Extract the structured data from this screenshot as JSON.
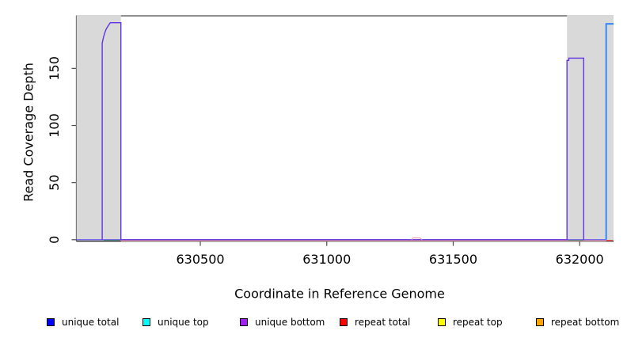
{
  "chart_data": {
    "type": "line",
    "title": "",
    "xlabel": "Coordinate in Reference Genome",
    "ylabel": "Read Coverage Depth",
    "xlim": [
      630010,
      632134
    ],
    "ylim": [
      0,
      196
    ],
    "grid": false,
    "x_ticks": [
      630500,
      631000,
      631500,
      632000
    ],
    "x_tick_labels": [
      "630500",
      "631000",
      "631500",
      "632000"
    ],
    "y_ticks": [
      0,
      50,
      100,
      150
    ],
    "y_tick_labels": [
      "0",
      "50",
      "100",
      "150"
    ],
    "shaded_regions": [
      {
        "name": "left-gray-band",
        "x0": 630010,
        "x1": 630186,
        "color": "#d9d9d9"
      },
      {
        "name": "right-gray-band",
        "x0": 631950,
        "x1": 632134,
        "color": "#d9d9d9"
      }
    ],
    "series": [
      {
        "name": "unique total",
        "color": "#0000ff",
        "display_color": "#5a46e8",
        "width": 1.2,
        "points": [
          [
            630010,
            0
          ],
          [
            632105,
            0
          ]
        ]
      },
      {
        "name": "unique bottom",
        "color": "#a020f0",
        "display_color": "#6234e0",
        "width": 1.4,
        "points": [
          [
            630112,
            0
          ],
          [
            630112,
            172
          ],
          [
            630115,
            175
          ],
          [
            630118,
            178
          ],
          [
            630122,
            181
          ],
          [
            630127,
            184
          ],
          [
            630132,
            186
          ],
          [
            630138,
            188
          ],
          [
            630144,
            190
          ],
          [
            630186,
            190
          ],
          [
            630186,
            0
          ],
          [
            631950,
            0
          ],
          [
            631950,
            157
          ],
          [
            631957,
            157
          ],
          [
            631957,
            159
          ],
          [
            632016,
            159
          ],
          [
            632016,
            0
          ]
        ]
      },
      {
        "name": "unique top",
        "color": "#00ffff",
        "display_color": "#3388ff",
        "width": 2,
        "points": [
          [
            632105,
            0
          ],
          [
            632105,
            189
          ],
          [
            632134,
            189
          ]
        ]
      },
      {
        "name": "repeat total",
        "color": "#ff0000",
        "display_color": "#ff9bb0",
        "width": 1.1,
        "points": [
          [
            631335,
            0
          ],
          [
            631341,
            1.5
          ],
          [
            631369,
            1.5
          ],
          [
            631377,
            0
          ]
        ]
      }
    ],
    "baseline_overlays": [
      {
        "name": "repeat-underline",
        "x0": 630186,
        "x1": 632105,
        "value": 0,
        "color": "#ffacac"
      },
      {
        "name": "green-segment-left",
        "x0": 630118,
        "x1": 630184,
        "value": 0,
        "color": "#3dbb3d"
      },
      {
        "name": "green-segment-right",
        "x0": 631953,
        "x1": 632016,
        "value": 0,
        "color": "#3dbb3d"
      },
      {
        "name": "red-segment-right",
        "x0": 632105,
        "x1": 632132,
        "value": 0,
        "color": "#ff5544"
      }
    ]
  },
  "legend": {
    "items": [
      {
        "label": "unique total",
        "color": "#0000ff"
      },
      {
        "label": "unique top",
        "color": "#00ffff"
      },
      {
        "label": "unique bottom",
        "color": "#a020f0"
      },
      {
        "label": "repeat total",
        "color": "#ff0000"
      },
      {
        "label": "repeat top",
        "color": "#ffff00"
      },
      {
        "label": "repeat bottom",
        "color": "#ffa500"
      }
    ]
  }
}
